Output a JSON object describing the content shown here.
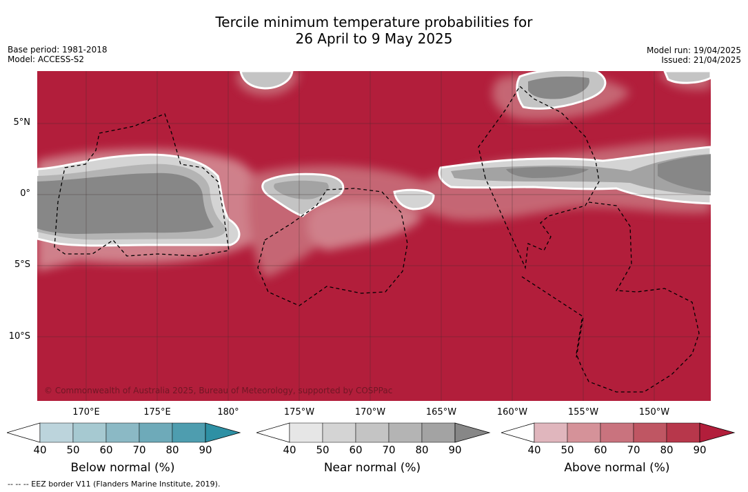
{
  "title": {
    "line1": "Tercile minimum temperature probabilities for",
    "line2": "26 April to 9 May 2025"
  },
  "meta_left": {
    "base_period": "Base period: 1981-2018",
    "model": "Model: ACCESS-S2"
  },
  "meta_right": {
    "model_run": "Model run: 19/04/2025",
    "issued": "Issued: 21/04/2025"
  },
  "map": {
    "lat_labels": [
      "5°N",
      "0°",
      "5°S",
      "10°S"
    ],
    "lon_labels": [
      "170°E",
      "175°E",
      "180°",
      "175°W",
      "170°W",
      "165°W",
      "160°W",
      "155°W",
      "150°W"
    ],
    "copyright": "© Commonwealth of Australia 2025, Bureau of Meteorology, supported by COSPPac",
    "colors": {
      "above_dominant": "#b21e3b",
      "near_dark": "#878787",
      "near_mid": "#a3a3a3"
    }
  },
  "colorbars": [
    {
      "label": "Below normal (%)",
      "ticks": [
        "40",
        "50",
        "60",
        "70",
        "80",
        "90"
      ],
      "colors": [
        "#ffffff",
        "#bcd4dc",
        "#a6c9d1",
        "#8bb9c5",
        "#6eaab9",
        "#4e9daf",
        "#2e90a4"
      ]
    },
    {
      "label": "Near normal (%)",
      "ticks": [
        "40",
        "50",
        "60",
        "70",
        "80",
        "90"
      ],
      "colors": [
        "#ffffff",
        "#e6e6e6",
        "#d4d4d4",
        "#c4c4c4",
        "#b4b4b4",
        "#a3a3a3",
        "#878787"
      ]
    },
    {
      "label": "Above normal (%)",
      "ticks": [
        "40",
        "50",
        "60",
        "70",
        "80",
        "90"
      ],
      "colors": [
        "#ffffff",
        "#e0b6bd",
        "#d59299",
        "#c9737e",
        "#bf5663",
        "#b7374b",
        "#b21e3b"
      ]
    }
  ],
  "footnote": "-- -- -- EEZ border V11 (Flanders Marine Institute, 2019)."
}
